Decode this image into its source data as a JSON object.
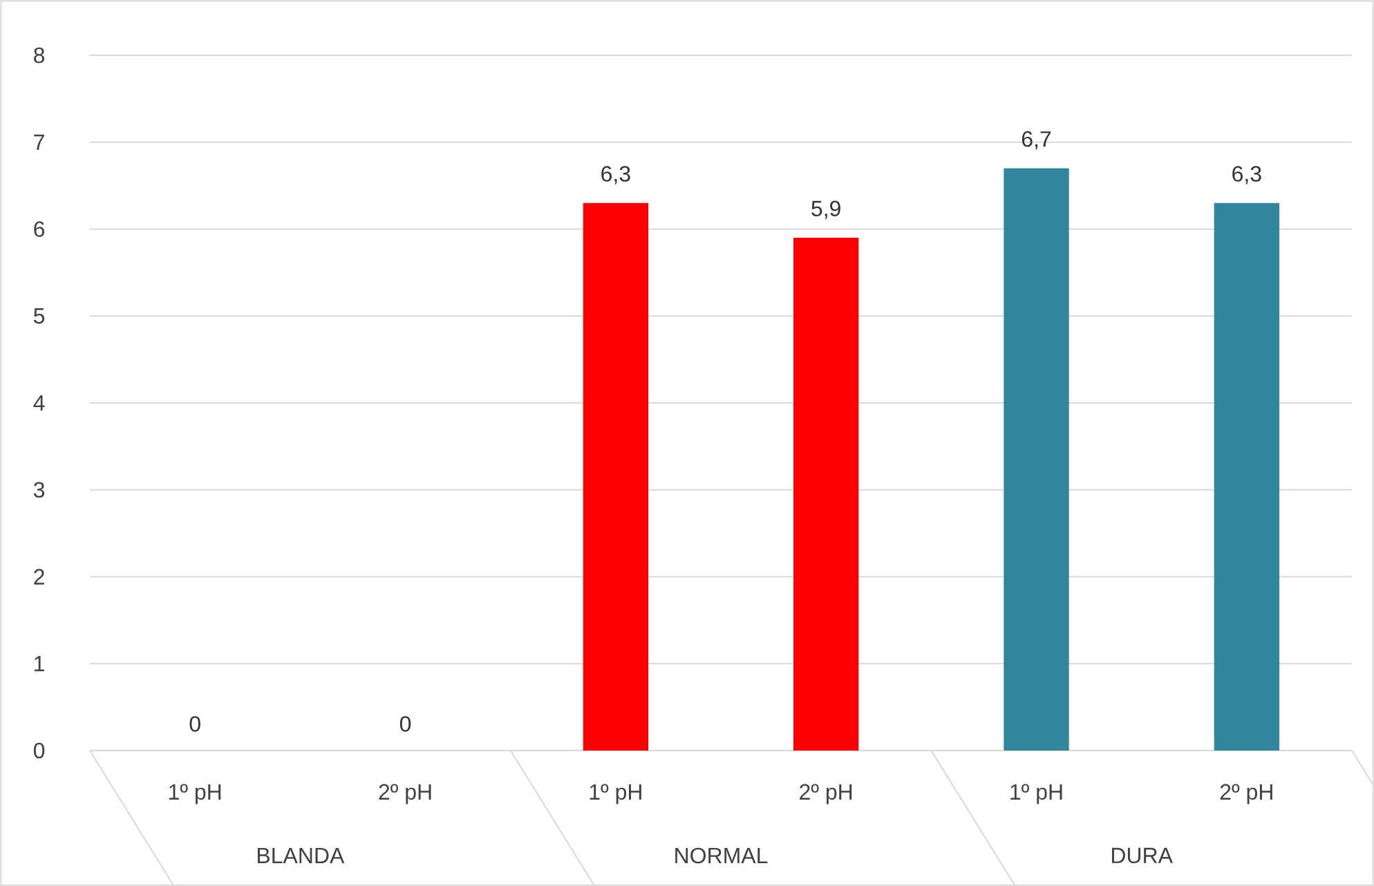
{
  "chart_data": {
    "type": "bar",
    "categories": [
      "1º pH",
      "2º pH",
      "1º pH",
      "2º pH",
      "1º pH",
      "2º pH"
    ],
    "annotations": [
      "BLANDA",
      "NORMAL",
      "DURA"
    ],
    "values": [
      0,
      0,
      6.3,
      5.9,
      6.7,
      6.3
    ],
    "value_labels": [
      "0",
      "0",
      "6,3",
      "5,9",
      "6,7",
      "6,3"
    ],
    "colors": [
      "#ff0000",
      "#ff0000",
      "#ff0000",
      "#ff0000",
      "#31859c",
      "#31859c"
    ],
    "ylim": [
      0,
      8
    ],
    "yticks": [
      0,
      1,
      2,
      3,
      4,
      5,
      6,
      7,
      8
    ],
    "grid": "y"
  }
}
